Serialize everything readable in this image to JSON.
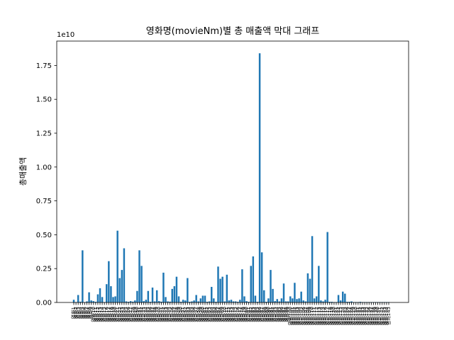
{
  "chart_data": {
    "type": "bar",
    "title": "영화명(movieNm)별 총 매출액 막대 그래프",
    "xlabel": "",
    "ylabel": "총매출액",
    "y_offset_label": "1e10",
    "ylim": [
      0,
      19300000000
    ],
    "yticks": [
      0,
      2500000000,
      5000000000,
      7500000000,
      10000000000,
      12500000000,
      15000000000,
      17500000000
    ],
    "ytick_labels": [
      "0.00",
      "0.25",
      "0.50",
      "0.75",
      "1.00",
      "1.25",
      "1.50",
      "1.75"
    ],
    "bar_color": "#1f77b4",
    "grid": false,
    "categories": [
      "영화1",
      "영화2",
      "영화3",
      "영화4",
      "영화5",
      "영화6",
      "영화7",
      "영화8",
      "영화9",
      "영화10",
      "영화11",
      "영화12",
      "영화13",
      "영화14",
      "영화15",
      "영화16",
      "영화17",
      "영화18",
      "영화19",
      "영화20",
      "영화21",
      "영화22",
      "영화23",
      "영화24",
      "영화25",
      "영화26",
      "영화27",
      "영화28",
      "영화29",
      "영화30",
      "영화31",
      "영화32",
      "영화33",
      "영화34",
      "영화35",
      "영화36",
      "영화37",
      "영화38",
      "영화39",
      "영화40",
      "영화41",
      "영화42",
      "영화43",
      "영화44",
      "영화45",
      "영화46",
      "영화47",
      "영화48",
      "영화49",
      "영화50",
      "영화51",
      "영화52",
      "영화53",
      "영화54",
      "영화55",
      "영화56",
      "영화57",
      "영화58",
      "영화59",
      "영화60",
      "영화61",
      "영화62",
      "영화63",
      "영화64",
      "영화65",
      "영화66",
      "영화67",
      "영화68",
      "영화69",
      "영화70",
      "영화71",
      "영화72",
      "영화73",
      "영화74",
      "영화75",
      "영화76",
      "영화77",
      "영화78",
      "영화79",
      "영화80",
      "영화81",
      "영화82",
      "영화83",
      "영화84",
      "영화85",
      "영화86",
      "영화87",
      "영화88",
      "영화89",
      "영화90",
      "영화91",
      "영화92",
      "영화93",
      "영화94",
      "영화95",
      "영화96",
      "영화97",
      "영화98",
      "영화99",
      "영화100",
      "영화101",
      "영화102",
      "영화103",
      "영화104",
      "영화105",
      "영화106",
      "영화107",
      "영화108",
      "영화109",
      "영화110",
      "영화111",
      "영화112",
      "영화113",
      "영화114",
      "영화115",
      "영화116",
      "영화117",
      "영화118",
      "영화119",
      "영화120",
      "영화121",
      "영화122",
      "영화123",
      "영화124",
      "영화125",
      "영화126",
      "영화127",
      "영화128",
      "영화129",
      "영화130",
      "영화131",
      "영화132",
      "영화133",
      "영화134",
      "영화135",
      "영화136",
      "영화137",
      "영화138",
      "영화139",
      "영화140",
      "영화141",
      "영화142",
      "영화143",
      "영화144",
      "영화145"
    ],
    "values": [
      200000000,
      30000000,
      550000000,
      60000000,
      3850000000,
      20000000,
      80000000,
      750000000,
      150000000,
      100000000,
      50000000,
      600000000,
      1050000000,
      400000000,
      30000000,
      1350000000,
      3050000000,
      1200000000,
      400000000,
      450000000,
      5300000000,
      1800000000,
      2400000000,
      4000000000,
      80000000,
      50000000,
      100000000,
      60000000,
      150000000,
      850000000,
      3850000000,
      2700000000,
      100000000,
      200000000,
      850000000,
      50000000,
      1100000000,
      80000000,
      900000000,
      100000000,
      60000000,
      2200000000,
      400000000,
      80000000,
      60000000,
      1000000000,
      1200000000,
      1900000000,
      450000000,
      50000000,
      200000000,
      150000000,
      1800000000,
      50000000,
      80000000,
      150000000,
      550000000,
      80000000,
      300000000,
      500000000,
      500000000,
      50000000,
      80000000,
      1150000000,
      300000000,
      50000000,
      2650000000,
      1750000000,
      1900000000,
      80000000,
      2050000000,
      150000000,
      200000000,
      80000000,
      80000000,
      50000000,
      200000000,
      2450000000,
      450000000,
      100000000,
      50000000,
      2700000000,
      3400000000,
      500000000,
      50000000,
      18400000000,
      3700000000,
      900000000,
      50000000,
      300000000,
      2400000000,
      1000000000,
      100000000,
      250000000,
      80000000,
      300000000,
      1400000000,
      80000000,
      80000000,
      450000000,
      300000000,
      1450000000,
      250000000,
      300000000,
      800000000,
      150000000,
      80000000,
      2150000000,
      1750000000,
      4900000000,
      300000000,
      450000000,
      2700000000,
      150000000,
      80000000,
      200000000,
      5200000000,
      50000000,
      50000000,
      30000000,
      30000000,
      550000000,
      150000000,
      800000000,
      650000000,
      50000000,
      50000000,
      80000000,
      30000000,
      30000000,
      30000000,
      50000000,
      30000000,
      30000000,
      30000000,
      30000000,
      30000000,
      30000000,
      30000000,
      30000000,
      30000000,
      30000000,
      30000000,
      30000000,
      30000000
    ]
  }
}
